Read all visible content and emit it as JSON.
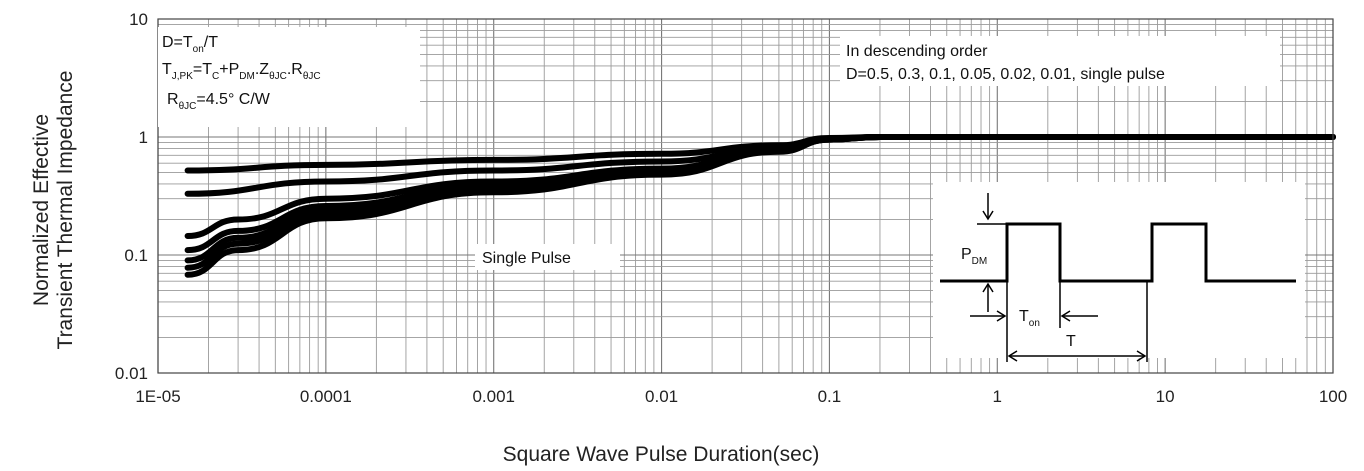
{
  "chart_data": {
    "type": "line",
    "x_scale": "log",
    "y_scale": "log",
    "xlim": [
      1e-05,
      100
    ],
    "ylim": [
      0.01,
      10
    ],
    "grid": true,
    "xlabel": "Square Wave Pulse Duration(sec)",
    "ylabel_line1": "Normalized Effective",
    "ylabel_line2": "Transient Thermal Impedance",
    "xticks": [
      "1E-05",
      "0.0001",
      "0.001",
      "0.01",
      "0.1",
      "1",
      "10",
      "100"
    ],
    "yticks": [
      "10",
      "1",
      "0.1",
      "0.01"
    ],
    "annotation_left": {
      "line1_a": "D=T",
      "line1_sub": "on",
      "line1_b": "/T",
      "line2_a": "T",
      "line2_sub1": "J,PK",
      "line2_b": "=T",
      "line2_sub2": "C",
      "line2_c": "+P",
      "line2_sub3": "DM",
      "line2_d": ".Z",
      "line2_sub4": "θJC",
      "line2_e": ".R",
      "line2_sub5": "θJC",
      "line3_a": "R",
      "line3_sub": "θJC",
      "line3_b": "=4.5° C/W"
    },
    "annotation_right": {
      "line1": "In descending order",
      "line2": "D=0.5, 0.3, 0.1, 0.05, 0.02, 0.01, single pulse"
    },
    "single_pulse_label": "Single Pulse",
    "inset": {
      "pdm": "P",
      "pdm_sub": "DM",
      "ton": "T",
      "ton_sub": "on",
      "t": "T"
    },
    "series": [
      {
        "values": [
          [
            1.5e-05,
            0.52
          ],
          [
            0.0001,
            0.58
          ],
          [
            0.001,
            0.64
          ],
          [
            0.01,
            0.72
          ],
          [
            0.05,
            0.85
          ],
          [
            0.1,
            0.98
          ],
          [
            0.2,
            1.0
          ],
          [
            100,
            1.0
          ]
        ]
      },
      {
        "values": [
          [
            1.5e-05,
            0.33
          ],
          [
            0.0001,
            0.42
          ],
          [
            0.001,
            0.52
          ],
          [
            0.01,
            0.62
          ],
          [
            0.05,
            0.8
          ],
          [
            0.1,
            0.97
          ],
          [
            0.2,
            1.0
          ],
          [
            100,
            1.0
          ]
        ]
      },
      {
        "values": [
          [
            1.5e-05,
            0.145
          ],
          [
            3e-05,
            0.2
          ],
          [
            0.0001,
            0.3
          ],
          [
            0.001,
            0.42
          ],
          [
            0.01,
            0.54
          ],
          [
            0.05,
            0.78
          ],
          [
            0.1,
            0.96
          ],
          [
            0.2,
            1.0
          ],
          [
            100,
            1.0
          ]
        ]
      },
      {
        "values": [
          [
            1.5e-05,
            0.11
          ],
          [
            3e-05,
            0.16
          ],
          [
            0.0001,
            0.26
          ],
          [
            0.001,
            0.39
          ],
          [
            0.01,
            0.52
          ],
          [
            0.05,
            0.77
          ],
          [
            0.1,
            0.96
          ],
          [
            0.2,
            1.0
          ],
          [
            100,
            1.0
          ]
        ]
      },
      {
        "values": [
          [
            1.5e-05,
            0.09
          ],
          [
            3e-05,
            0.14
          ],
          [
            0.0001,
            0.24
          ],
          [
            0.001,
            0.37
          ],
          [
            0.01,
            0.5
          ],
          [
            0.05,
            0.76
          ],
          [
            0.1,
            0.95
          ],
          [
            0.2,
            1.0
          ],
          [
            100,
            1.0
          ]
        ]
      },
      {
        "values": [
          [
            1.5e-05,
            0.078
          ],
          [
            3e-05,
            0.125
          ],
          [
            0.0001,
            0.22
          ],
          [
            0.001,
            0.35
          ],
          [
            0.01,
            0.49
          ],
          [
            0.05,
            0.76
          ],
          [
            0.1,
            0.95
          ],
          [
            0.2,
            1.0
          ],
          [
            100,
            1.0
          ]
        ]
      },
      {
        "values": [
          [
            1.5e-05,
            0.068
          ],
          [
            3e-05,
            0.11
          ],
          [
            0.0001,
            0.205
          ],
          [
            0.001,
            0.34
          ],
          [
            0.01,
            0.48
          ],
          [
            0.05,
            0.75
          ],
          [
            0.1,
            0.95
          ],
          [
            0.2,
            1.0
          ],
          [
            100,
            1.0
          ]
        ]
      }
    ]
  }
}
